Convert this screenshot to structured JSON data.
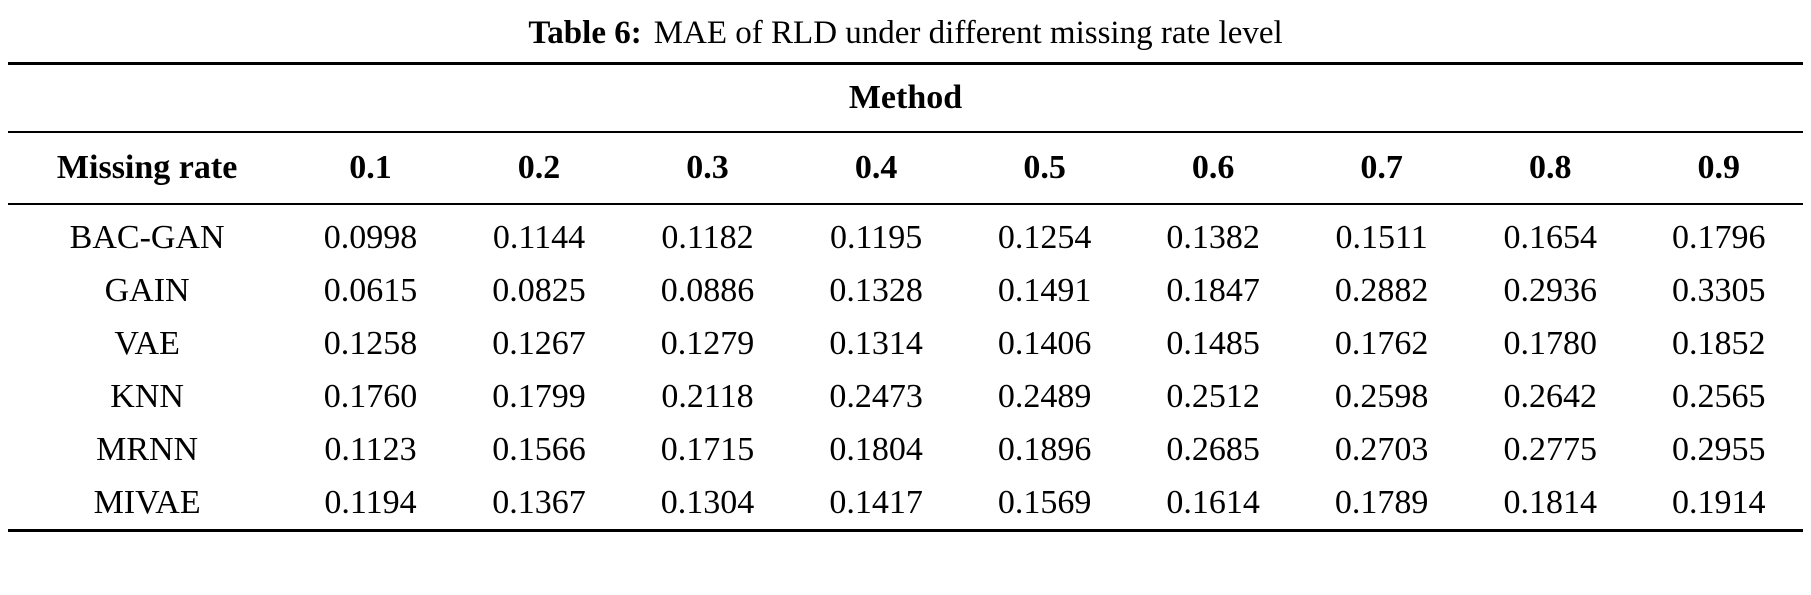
{
  "page": {
    "background_color": "#ffffff",
    "text_color": "#000000"
  },
  "caption": {
    "label": "Table 6:",
    "text": "MAE of RLD under different missing rate level"
  },
  "table": {
    "group_header": "Method",
    "row_header": "Missing rate",
    "rate_headers": [
      "0.1",
      "0.2",
      "0.3",
      "0.4",
      "0.5",
      "0.6",
      "0.7",
      "0.8",
      "0.9"
    ],
    "rows": [
      {
        "method": "BAC-GAN",
        "values": [
          "0.0998",
          "0.1144",
          "0.1182",
          "0.1195",
          "0.1254",
          "0.1382",
          "0.1511",
          "0.1654",
          "0.1796"
        ]
      },
      {
        "method": "GAIN",
        "values": [
          "0.0615",
          "0.0825",
          "0.0886",
          "0.1328",
          "0.1491",
          "0.1847",
          "0.2882",
          "0.2936",
          "0.3305"
        ]
      },
      {
        "method": "VAE",
        "values": [
          "0.1258",
          "0.1267",
          "0.1279",
          "0.1314",
          "0.1406",
          "0.1485",
          "0.1762",
          "0.1780",
          "0.1852"
        ]
      },
      {
        "method": "KNN",
        "values": [
          "0.1760",
          "0.1799",
          "0.2118",
          "0.2473",
          "0.2489",
          "0.2512",
          "0.2598",
          "0.2642",
          "0.2565"
        ]
      },
      {
        "method": "MRNN",
        "values": [
          "0.1123",
          "0.1566",
          "0.1715",
          "0.1804",
          "0.1896",
          "0.2685",
          "0.2703",
          "0.2775",
          "0.2955"
        ]
      },
      {
        "method": "MIVAE",
        "values": [
          "0.1194",
          "0.1367",
          "0.1304",
          "0.1417",
          "0.1569",
          "0.1614",
          "0.1789",
          "0.1814",
          "0.1914"
        ]
      }
    ]
  }
}
